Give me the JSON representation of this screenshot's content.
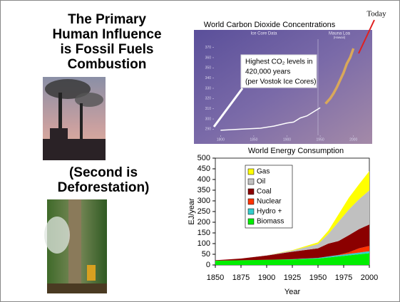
{
  "slide": {
    "title": [
      "The Primary",
      "Human Influence",
      "is Fossil Fuels",
      "Combustion"
    ],
    "subtitle": [
      "(Second is",
      "Deforestation)"
    ]
  },
  "chart_data": [
    {
      "type": "line",
      "title": "World Carbon Dioxide Concentrations",
      "annotations": {
        "today": "Today",
        "ice_core": "Ice Core Data",
        "mauna_loa": "Mauna Loa",
        "mauna_loa_note": "(Hawaii)",
        "highest": [
          "Highest CO₂ levels in",
          "420,000 years",
          "(per Vostok Ice Cores)"
        ]
      },
      "xlim": [
        1790,
        2010
      ],
      "xticks": [
        1800,
        1850,
        1900,
        1950,
        2000
      ],
      "ylim": [
        284,
        376
      ],
      "yticks": [
        290,
        300,
        310,
        320,
        330,
        340,
        350,
        360,
        370
      ],
      "series": [
        {
          "name": "Ice Core Data",
          "color": "#ffffff",
          "x": [
            1800,
            1830,
            1860,
            1880,
            1900,
            1910,
            1920,
            1930,
            1940,
            1950
          ],
          "values": [
            289,
            290,
            291,
            293,
            296,
            297,
            301,
            303,
            307,
            311
          ]
        },
        {
          "name": "Mauna Loa",
          "color": "#d9a85a",
          "x": [
            1958,
            1965,
            1970,
            1975,
            1980,
            1985,
            1990,
            1995,
            2000
          ],
          "values": [
            315,
            320,
            325,
            331,
            338,
            345,
            354,
            360,
            369
          ]
        }
      ]
    },
    {
      "type": "area",
      "title": "World Energy Consumption",
      "x_label": "Year",
      "y_label": "EJ/year",
      "x": [
        1850,
        1875,
        1900,
        1925,
        1950,
        1960,
        1970,
        1980,
        1990,
        2000
      ],
      "xlim": [
        1850,
        2000
      ],
      "xticks": [
        1850,
        1875,
        1900,
        1925,
        1950,
        1975,
        2000
      ],
      "ylim": [
        0,
        500
      ],
      "yticks": [
        0,
        50,
        100,
        150,
        200,
        250,
        300,
        350,
        400,
        450,
        500
      ],
      "series": [
        {
          "name": "Biomass",
          "color": "#00ee00",
          "values": [
            20,
            22,
            24,
            26,
            30,
            35,
            40,
            45,
            50,
            55
          ]
        },
        {
          "name": "Hydro +",
          "color": "#33cccc",
          "values": [
            0,
            0,
            0,
            1,
            3,
            5,
            6,
            7,
            8,
            9
          ]
        },
        {
          "name": "Nuclear",
          "color": "#ff3300",
          "values": [
            0,
            0,
            0,
            0,
            0,
            0,
            1,
            7,
            20,
            25
          ]
        },
        {
          "name": "Coal",
          "color": "#8b0000",
          "values": [
            2,
            8,
            20,
            35,
            45,
            60,
            65,
            80,
            90,
            100
          ]
        },
        {
          "name": "Oil",
          "color": "#c0c0c0",
          "values": [
            0,
            0,
            1,
            5,
            20,
            45,
            90,
            120,
            140,
            160
          ]
        },
        {
          "name": "Gas",
          "color": "#ffff00",
          "values": [
            0,
            0,
            0,
            2,
            8,
            15,
            35,
            55,
            70,
            90
          ]
        }
      ]
    }
  ]
}
